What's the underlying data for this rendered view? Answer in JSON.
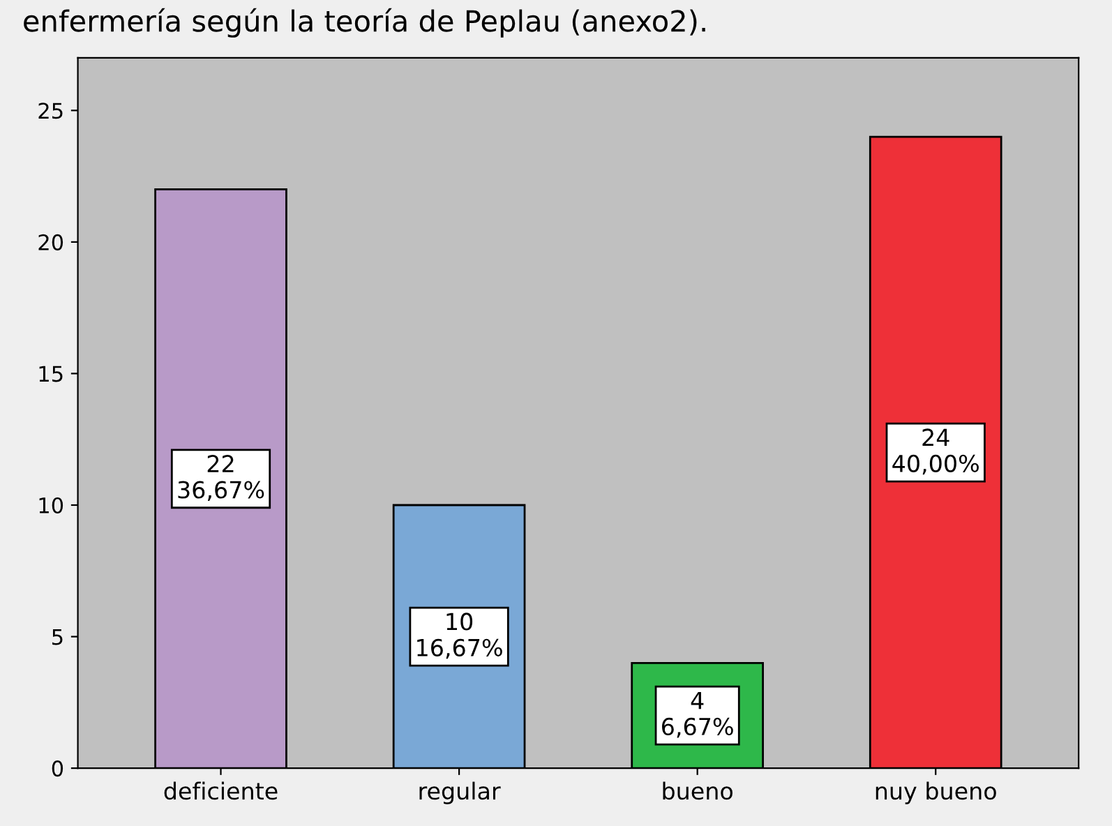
{
  "chart_data": {
    "type": "bar",
    "title": "enfermería según la teoría de Peplau (anexo2).",
    "categories": [
      "deficiente",
      "regular",
      "bueno",
      "nuy bueno"
    ],
    "values": [
      22,
      10,
      4,
      24
    ],
    "colors": [
      "#b89ac8",
      "#7aa8d6",
      "#2eb84a",
      "#ee3038"
    ],
    "value_labels": [
      "22\n36,67%",
      "10\n16,67%",
      "4\n6,67%",
      "24\n40,00%"
    ],
    "ylim": [
      0,
      27
    ],
    "yticks": [
      0,
      5,
      10,
      15,
      20,
      25
    ],
    "grid": false,
    "legend": false
  }
}
